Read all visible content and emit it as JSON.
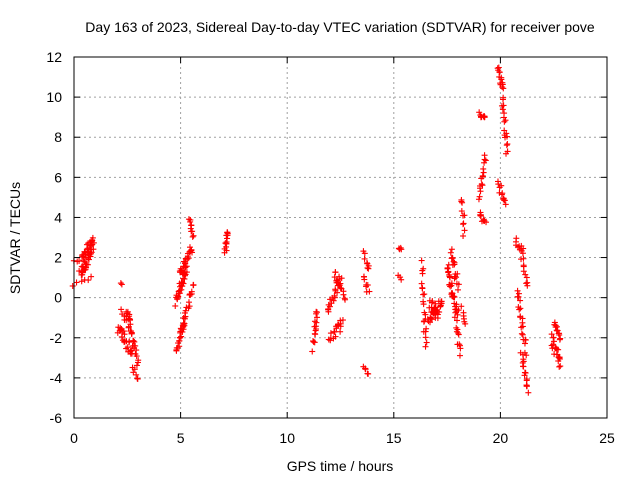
{
  "chart_data": {
    "type": "scatter",
    "title": "Day 163 of 2023, Sidereal Day-to-day VTEC variation (SDTVAR) for receiver pove",
    "xlabel": "GPS time / hours",
    "ylabel": "SDTVAR / TECUs",
    "xlim": [
      0,
      25
    ],
    "ylim": [
      -6,
      12
    ],
    "xticks": [
      "0",
      "5",
      "10",
      "15",
      "20",
      "25"
    ],
    "yticks": [
      "-6",
      "-4",
      "-2",
      "0",
      "2",
      "4",
      "6",
      "8",
      "10",
      "12"
    ],
    "grid": true,
    "marker": "+",
    "color": "#ff0000",
    "series": [
      {
        "name": "SDTVAR",
        "segments": [
          {
            "x": [
              0.0,
              0.8
            ],
            "y": [
              0.6,
              1.0
            ],
            "spread": 0.3,
            "n": 6
          },
          {
            "x": [
              0.0,
              0.5
            ],
            "y": [
              1.8,
              2.0
            ],
            "spread": 0.3,
            "n": 5
          },
          {
            "x": [
              0.3,
              0.9
            ],
            "y": [
              1.2,
              2.6
            ],
            "spread": 0.8,
            "n": 40
          },
          {
            "x": [
              0.4,
              0.9
            ],
            "y": [
              2.2,
              2.9
            ],
            "spread": 0.4,
            "n": 12
          },
          {
            "x": [
              2.2,
              2.2
            ],
            "y": [
              0.7,
              0.7
            ],
            "spread": 0.1,
            "n": 2
          },
          {
            "x": [
              2.2,
              2.6
            ],
            "y": [
              -0.5,
              -1.5
            ],
            "spread": 0.4,
            "n": 8
          },
          {
            "x": [
              2.1,
              2.7
            ],
            "y": [
              -1.5,
              -2.7
            ],
            "spread": 0.6,
            "n": 25
          },
          {
            "x": [
              2.5,
              2.6
            ],
            "y": [
              -0.6,
              -1.2
            ],
            "spread": 0.3,
            "n": 8
          },
          {
            "x": [
              2.6,
              3.0
            ],
            "y": [
              -1.3,
              -3.2
            ],
            "spread": 0.5,
            "n": 20
          },
          {
            "x": [
              2.8,
              3.0
            ],
            "y": [
              -3.5,
              -4.0
            ],
            "spread": 0.3,
            "n": 6
          },
          {
            "x": [
              4.8,
              5.2
            ],
            "y": [
              -2.7,
              -1.2
            ],
            "spread": 0.4,
            "n": 22
          },
          {
            "x": [
              4.8,
              5.3
            ],
            "y": [
              -0.2,
              1.5
            ],
            "spread": 0.6,
            "n": 30
          },
          {
            "x": [
              5.0,
              5.5
            ],
            "y": [
              1.3,
              2.5
            ],
            "spread": 0.4,
            "n": 25
          },
          {
            "x": [
              5.4,
              5.6
            ],
            "y": [
              3.9,
              3.0
            ],
            "spread": 0.3,
            "n": 10
          },
          {
            "x": [
              5.1,
              5.6
            ],
            "y": [
              -1.5,
              0.8
            ],
            "spread": 0.4,
            "n": 20
          },
          {
            "x": [
              7.1,
              7.2
            ],
            "y": [
              2.3,
              3.4
            ],
            "spread": 0.3,
            "n": 14
          },
          {
            "x": [
              11.2,
              11.4
            ],
            "y": [
              -2.5,
              -0.6
            ],
            "spread": 0.4,
            "n": 16
          },
          {
            "x": [
              11.9,
              12.5
            ],
            "y": [
              -0.5,
              0.9
            ],
            "spread": 0.5,
            "n": 20
          },
          {
            "x": [
              12.0,
              12.6
            ],
            "y": [
              -2.1,
              -1.2
            ],
            "spread": 0.5,
            "n": 18
          },
          {
            "x": [
              12.2,
              12.7
            ],
            "y": [
              1.2,
              0.0
            ],
            "spread": 0.4,
            "n": 14
          },
          {
            "x": [
              13.6,
              13.8
            ],
            "y": [
              2.2,
              1.4
            ],
            "spread": 0.3,
            "n": 8
          },
          {
            "x": [
              13.6,
              13.8
            ],
            "y": [
              1.0,
              0.3
            ],
            "spread": 0.3,
            "n": 8
          },
          {
            "x": [
              13.6,
              13.8
            ],
            "y": [
              -3.4,
              -3.8
            ],
            "spread": 0.2,
            "n": 6
          },
          {
            "x": [
              15.2,
              15.4
            ],
            "y": [
              2.5,
              2.4
            ],
            "spread": 0.1,
            "n": 4
          },
          {
            "x": [
              15.2,
              15.3
            ],
            "y": [
              1.1,
              0.9
            ],
            "spread": 0.1,
            "n": 3
          },
          {
            "x": [
              16.3,
              16.5
            ],
            "y": [
              1.7,
              -2.4
            ],
            "spread": 0.4,
            "n": 20
          },
          {
            "x": [
              16.5,
              17.3
            ],
            "y": [
              -1.3,
              0.0
            ],
            "spread": 0.5,
            "n": 24
          },
          {
            "x": [
              16.7,
              17.1
            ],
            "y": [
              -0.3,
              -1.0
            ],
            "spread": 0.6,
            "n": 20
          },
          {
            "x": [
              17.7,
              18.0
            ],
            "y": [
              2.4,
              0.5
            ],
            "spread": 0.5,
            "n": 18
          },
          {
            "x": [
              17.5,
              18.0
            ],
            "y": [
              1.5,
              -0.8
            ],
            "spread": 0.6,
            "n": 30
          },
          {
            "x": [
              17.9,
              18.1
            ],
            "y": [
              -1.0,
              -2.8
            ],
            "spread": 0.4,
            "n": 12
          },
          {
            "x": [
              18.2,
              18.3
            ],
            "y": [
              5.0,
              3.2
            ],
            "spread": 0.3,
            "n": 10
          },
          {
            "x": [
              18.2,
              18.4
            ],
            "y": [
              -0.5,
              -1.4
            ],
            "spread": 0.3,
            "n": 6
          },
          {
            "x": [
              19.0,
              19.3
            ],
            "y": [
              9.2,
              9.0
            ],
            "spread": 0.3,
            "n": 10
          },
          {
            "x": [
              19.0,
              19.3
            ],
            "y": [
              5.0,
              7.0
            ],
            "spread": 0.4,
            "n": 16
          },
          {
            "x": [
              19.0,
              19.3
            ],
            "y": [
              4.2,
              3.7
            ],
            "spread": 0.3,
            "n": 10
          },
          {
            "x": [
              19.9,
              20.1
            ],
            "y": [
              11.5,
              10.5
            ],
            "spread": 0.4,
            "n": 14
          },
          {
            "x": [
              20.1,
              20.3
            ],
            "y": [
              10.0,
              7.2
            ],
            "spread": 0.4,
            "n": 18
          },
          {
            "x": [
              19.9,
              20.2
            ],
            "y": [
              5.8,
              4.6
            ],
            "spread": 0.3,
            "n": 12
          },
          {
            "x": [
              20.7,
              21.1
            ],
            "y": [
              2.9,
              2.3
            ],
            "spread": 0.3,
            "n": 10
          },
          {
            "x": [
              20.8,
              21.2
            ],
            "y": [
              0.3,
              -2.7
            ],
            "spread": 0.4,
            "n": 22
          },
          {
            "x": [
              21.0,
              21.3
            ],
            "y": [
              -2.8,
              -4.6
            ],
            "spread": 0.3,
            "n": 16
          },
          {
            "x": [
              21.0,
              21.3
            ],
            "y": [
              2.0,
              0.5
            ],
            "spread": 0.3,
            "n": 10
          },
          {
            "x": [
              22.5,
              22.8
            ],
            "y": [
              -1.1,
              -2.0
            ],
            "spread": 0.4,
            "n": 14
          },
          {
            "x": [
              22.4,
              22.8
            ],
            "y": [
              -2.0,
              -3.3
            ],
            "spread": 0.6,
            "n": 22
          }
        ]
      }
    ]
  }
}
